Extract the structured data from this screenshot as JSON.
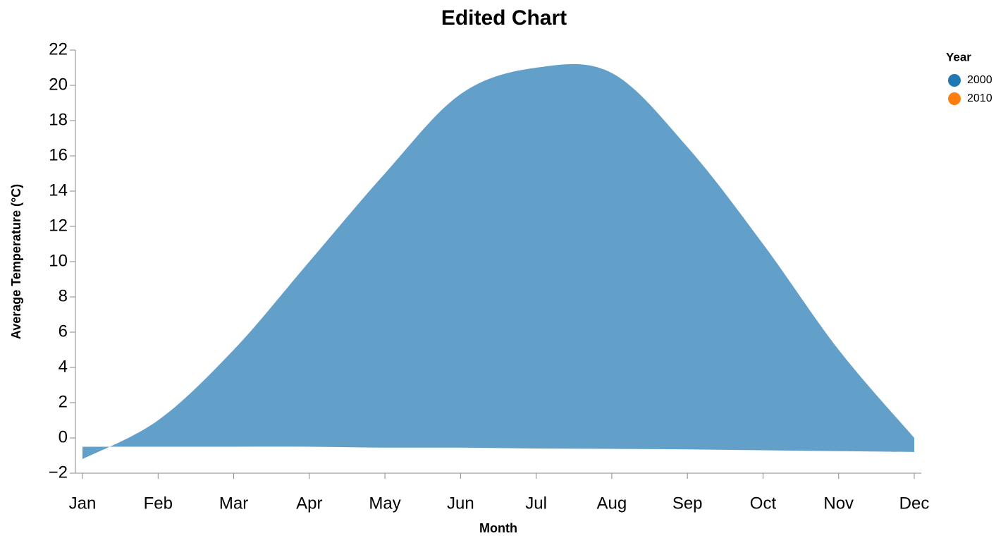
{
  "chart_data": {
    "type": "area-band",
    "title": "Edited Chart",
    "x_label": "Month",
    "y_label": "Average Temperature (°C)",
    "categories": [
      "Jan",
      "Feb",
      "Mar",
      "Apr",
      "May",
      "Jun",
      "Jul",
      "Aug",
      "Sep",
      "Oct",
      "Nov",
      "Dec"
    ],
    "legend_title": "Year",
    "legend_position": "right",
    "fill_color": "#1f77b4",
    "fill_opacity": 0.7,
    "series": [
      {
        "name": "2000",
        "color": "#1f77b4",
        "values": [
          -1.2,
          1,
          5,
          10,
          15,
          19.5,
          21,
          20.7,
          16.5,
          11,
          5,
          0
        ]
      },
      {
        "name": "2010",
        "color": "#ff7f0e",
        "values": [
          -0.5,
          -0.5,
          -0.5,
          -0.5,
          -0.55,
          -0.55,
          -0.6,
          -0.62,
          -0.65,
          -0.7,
          -0.75,
          -0.8
        ]
      }
    ],
    "ylim": [
      -2,
      22
    ],
    "yticks": [
      {
        "value": -2,
        "label": "−2"
      },
      0,
      2,
      4,
      6,
      8,
      10,
      12,
      14,
      16,
      18,
      20,
      22
    ]
  }
}
